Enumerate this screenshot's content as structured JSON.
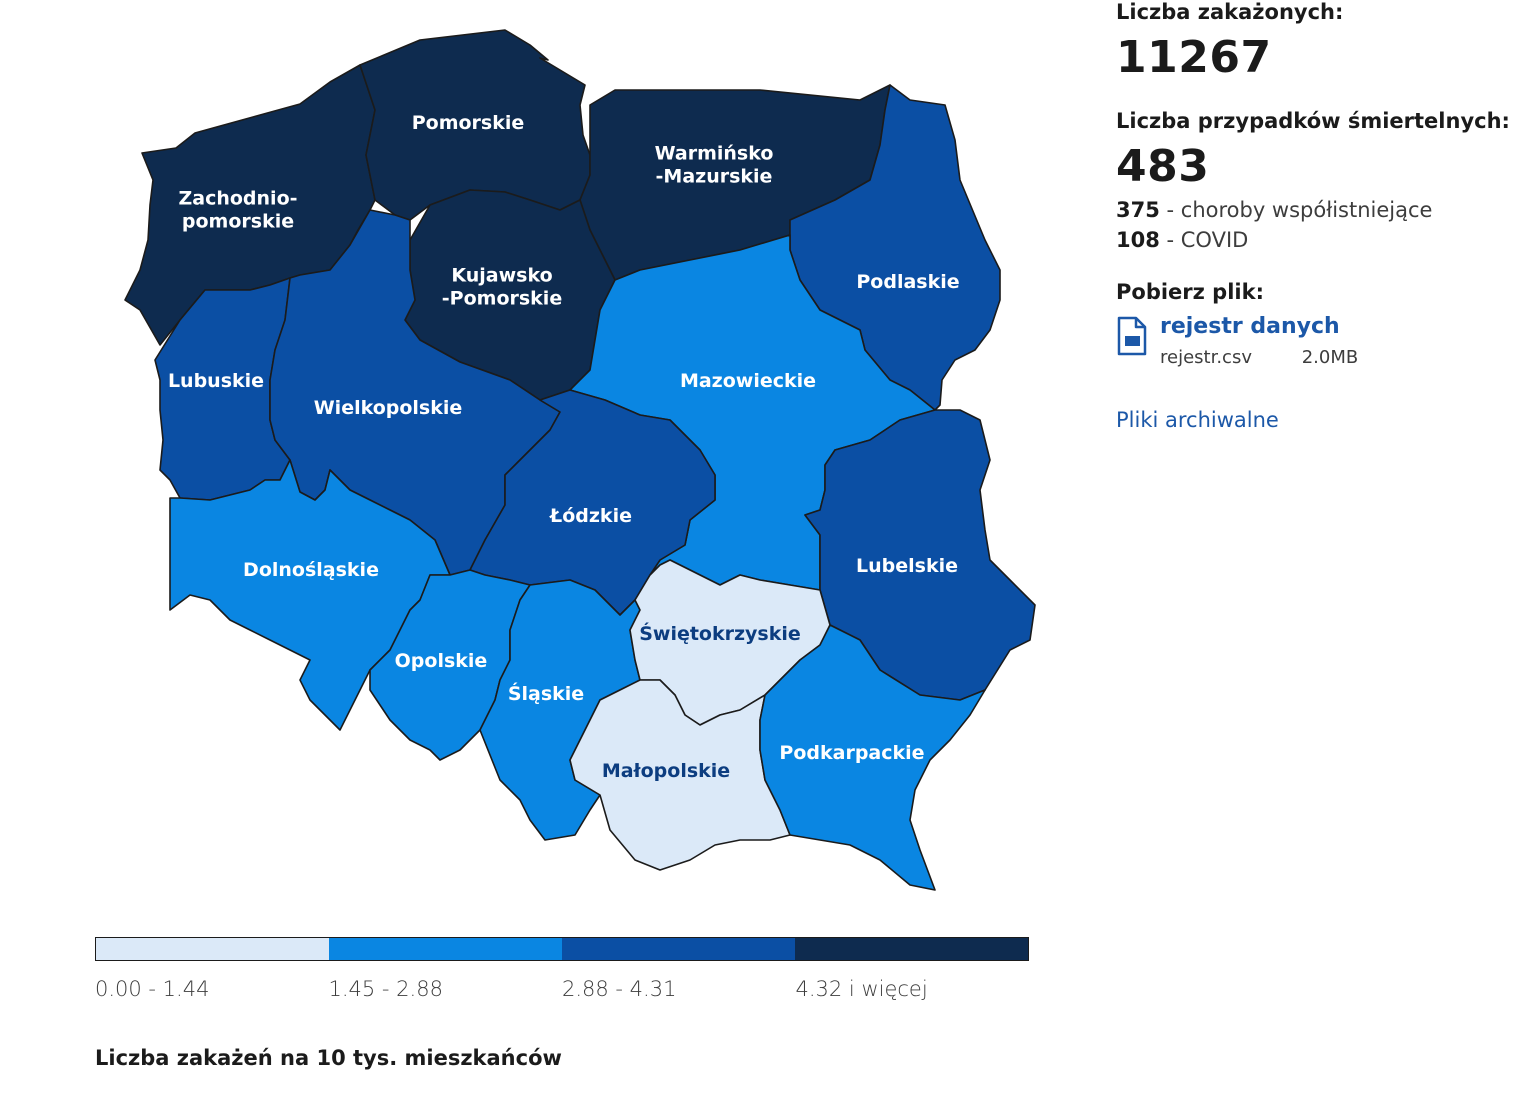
{
  "map": {
    "colors": {
      "bin1": "#dbe9f8",
      "bin2": "#0a86e2",
      "bin3": "#0b4fa4",
      "bin4": "#0e2b4f",
      "label_dark": "#0c3d80",
      "label_light": "#ffffff"
    },
    "regions": [
      {
        "name": "Zachodnio-\npomorskie",
        "bin": 4
      },
      {
        "name": "Pomorskie",
        "bin": 4
      },
      {
        "name": "Warmińsko\n-Mazurskie",
        "bin": 4
      },
      {
        "name": "Kujawsko\n-Pomorskie",
        "bin": 4
      },
      {
        "name": "Podlaskie",
        "bin": 3
      },
      {
        "name": "Lubuskie",
        "bin": 3
      },
      {
        "name": "Wielkopolskie",
        "bin": 3
      },
      {
        "name": "Mazowieckie",
        "bin": 2
      },
      {
        "name": "Łódzkie",
        "bin": 3
      },
      {
        "name": "Lubelskie",
        "bin": 3
      },
      {
        "name": "Dolnośląskie",
        "bin": 2
      },
      {
        "name": "Opolskie",
        "bin": 2
      },
      {
        "name": "Śląskie",
        "bin": 2
      },
      {
        "name": "Świętokrzyskie",
        "bin": 1
      },
      {
        "name": "Małopolskie",
        "bin": 1
      },
      {
        "name": "Podkarpackie",
        "bin": 2
      }
    ]
  },
  "legend": {
    "bins": [
      {
        "label": "0.00 - 1.44",
        "color": "#dbe9f8"
      },
      {
        "label": "1.45 - 2.88",
        "color": "#0a86e2"
      },
      {
        "label": "2.88 - 4.31",
        "color": "#0b4fa4"
      },
      {
        "label": "4.32 i więcej",
        "color": "#0e2b4f"
      }
    ],
    "title": "Liczba zakażeń na 10 tys. mieszkańców"
  },
  "stats": {
    "infected_label": "Liczba zakażonych:",
    "infected_value": "11267",
    "deaths_label": "Liczba przypadków śmiertelnych:",
    "deaths_value": "483",
    "comorbid_value": "375",
    "comorbid_label": " - choroby współistniejące",
    "covid_value": "108",
    "covid_label": " - COVID"
  },
  "download": {
    "label": "Pobierz plik:",
    "link_text": "rejestr danych",
    "filename": "rejestr.csv",
    "filesize": "2.0MB",
    "icon": "file-icon",
    "archive_link": "Pliki archiwalne"
  }
}
